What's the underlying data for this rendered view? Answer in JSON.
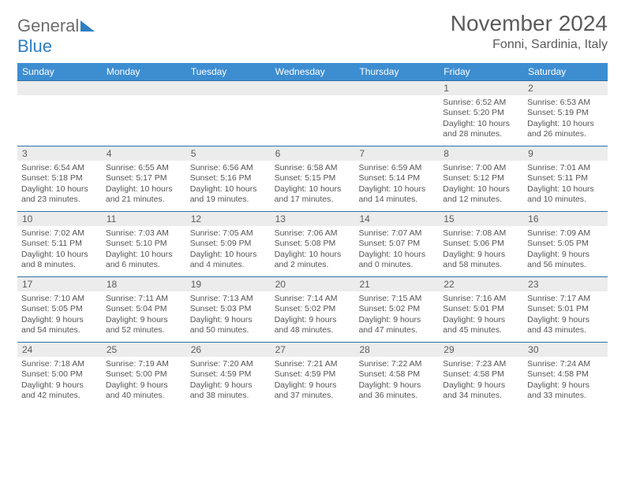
{
  "logo": {
    "text1": "General",
    "text2": "Blue"
  },
  "header": {
    "month_title": "November 2024",
    "location": "Fonni, Sardinia, Italy"
  },
  "colors": {
    "header_bar": "#3d8dd1",
    "accent_blue": "#2f7fc3",
    "text_gray": "#5b5b5b",
    "light_gray": "#ececec",
    "border_blue": "#2f6fa8"
  },
  "weekdays": [
    "Sunday",
    "Monday",
    "Tuesday",
    "Wednesday",
    "Thursday",
    "Friday",
    "Saturday"
  ],
  "weeks": [
    {
      "nums": [
        "",
        "",
        "",
        "",
        "",
        "1",
        "2"
      ],
      "cells": [
        {
          "sunrise": "",
          "sunset": "",
          "daylight": ""
        },
        {
          "sunrise": "",
          "sunset": "",
          "daylight": ""
        },
        {
          "sunrise": "",
          "sunset": "",
          "daylight": ""
        },
        {
          "sunrise": "",
          "sunset": "",
          "daylight": ""
        },
        {
          "sunrise": "",
          "sunset": "",
          "daylight": ""
        },
        {
          "sunrise": "Sunrise: 6:52 AM",
          "sunset": "Sunset: 5:20 PM",
          "daylight": "Daylight: 10 hours and 28 minutes."
        },
        {
          "sunrise": "Sunrise: 6:53 AM",
          "sunset": "Sunset: 5:19 PM",
          "daylight": "Daylight: 10 hours and 26 minutes."
        }
      ]
    },
    {
      "nums": [
        "3",
        "4",
        "5",
        "6",
        "7",
        "8",
        "9"
      ],
      "cells": [
        {
          "sunrise": "Sunrise: 6:54 AM",
          "sunset": "Sunset: 5:18 PM",
          "daylight": "Daylight: 10 hours and 23 minutes."
        },
        {
          "sunrise": "Sunrise: 6:55 AM",
          "sunset": "Sunset: 5:17 PM",
          "daylight": "Daylight: 10 hours and 21 minutes."
        },
        {
          "sunrise": "Sunrise: 6:56 AM",
          "sunset": "Sunset: 5:16 PM",
          "daylight": "Daylight: 10 hours and 19 minutes."
        },
        {
          "sunrise": "Sunrise: 6:58 AM",
          "sunset": "Sunset: 5:15 PM",
          "daylight": "Daylight: 10 hours and 17 minutes."
        },
        {
          "sunrise": "Sunrise: 6:59 AM",
          "sunset": "Sunset: 5:14 PM",
          "daylight": "Daylight: 10 hours and 14 minutes."
        },
        {
          "sunrise": "Sunrise: 7:00 AM",
          "sunset": "Sunset: 5:12 PM",
          "daylight": "Daylight: 10 hours and 12 minutes."
        },
        {
          "sunrise": "Sunrise: 7:01 AM",
          "sunset": "Sunset: 5:11 PM",
          "daylight": "Daylight: 10 hours and 10 minutes."
        }
      ]
    },
    {
      "nums": [
        "10",
        "11",
        "12",
        "13",
        "14",
        "15",
        "16"
      ],
      "cells": [
        {
          "sunrise": "Sunrise: 7:02 AM",
          "sunset": "Sunset: 5:11 PM",
          "daylight": "Daylight: 10 hours and 8 minutes."
        },
        {
          "sunrise": "Sunrise: 7:03 AM",
          "sunset": "Sunset: 5:10 PM",
          "daylight": "Daylight: 10 hours and 6 minutes."
        },
        {
          "sunrise": "Sunrise: 7:05 AM",
          "sunset": "Sunset: 5:09 PM",
          "daylight": "Daylight: 10 hours and 4 minutes."
        },
        {
          "sunrise": "Sunrise: 7:06 AM",
          "sunset": "Sunset: 5:08 PM",
          "daylight": "Daylight: 10 hours and 2 minutes."
        },
        {
          "sunrise": "Sunrise: 7:07 AM",
          "sunset": "Sunset: 5:07 PM",
          "daylight": "Daylight: 10 hours and 0 minutes."
        },
        {
          "sunrise": "Sunrise: 7:08 AM",
          "sunset": "Sunset: 5:06 PM",
          "daylight": "Daylight: 9 hours and 58 minutes."
        },
        {
          "sunrise": "Sunrise: 7:09 AM",
          "sunset": "Sunset: 5:05 PM",
          "daylight": "Daylight: 9 hours and 56 minutes."
        }
      ]
    },
    {
      "nums": [
        "17",
        "18",
        "19",
        "20",
        "21",
        "22",
        "23"
      ],
      "cells": [
        {
          "sunrise": "Sunrise: 7:10 AM",
          "sunset": "Sunset: 5:05 PM",
          "daylight": "Daylight: 9 hours and 54 minutes."
        },
        {
          "sunrise": "Sunrise: 7:11 AM",
          "sunset": "Sunset: 5:04 PM",
          "daylight": "Daylight: 9 hours and 52 minutes."
        },
        {
          "sunrise": "Sunrise: 7:13 AM",
          "sunset": "Sunset: 5:03 PM",
          "daylight": "Daylight: 9 hours and 50 minutes."
        },
        {
          "sunrise": "Sunrise: 7:14 AM",
          "sunset": "Sunset: 5:02 PM",
          "daylight": "Daylight: 9 hours and 48 minutes."
        },
        {
          "sunrise": "Sunrise: 7:15 AM",
          "sunset": "Sunset: 5:02 PM",
          "daylight": "Daylight: 9 hours and 47 minutes."
        },
        {
          "sunrise": "Sunrise: 7:16 AM",
          "sunset": "Sunset: 5:01 PM",
          "daylight": "Daylight: 9 hours and 45 minutes."
        },
        {
          "sunrise": "Sunrise: 7:17 AM",
          "sunset": "Sunset: 5:01 PM",
          "daylight": "Daylight: 9 hours and 43 minutes."
        }
      ]
    },
    {
      "nums": [
        "24",
        "25",
        "26",
        "27",
        "28",
        "29",
        "30"
      ],
      "cells": [
        {
          "sunrise": "Sunrise: 7:18 AM",
          "sunset": "Sunset: 5:00 PM",
          "daylight": "Daylight: 9 hours and 42 minutes."
        },
        {
          "sunrise": "Sunrise: 7:19 AM",
          "sunset": "Sunset: 5:00 PM",
          "daylight": "Daylight: 9 hours and 40 minutes."
        },
        {
          "sunrise": "Sunrise: 7:20 AM",
          "sunset": "Sunset: 4:59 PM",
          "daylight": "Daylight: 9 hours and 38 minutes."
        },
        {
          "sunrise": "Sunrise: 7:21 AM",
          "sunset": "Sunset: 4:59 PM",
          "daylight": "Daylight: 9 hours and 37 minutes."
        },
        {
          "sunrise": "Sunrise: 7:22 AM",
          "sunset": "Sunset: 4:58 PM",
          "daylight": "Daylight: 9 hours and 36 minutes."
        },
        {
          "sunrise": "Sunrise: 7:23 AM",
          "sunset": "Sunset: 4:58 PM",
          "daylight": "Daylight: 9 hours and 34 minutes."
        },
        {
          "sunrise": "Sunrise: 7:24 AM",
          "sunset": "Sunset: 4:58 PM",
          "daylight": "Daylight: 9 hours and 33 minutes."
        }
      ]
    }
  ]
}
